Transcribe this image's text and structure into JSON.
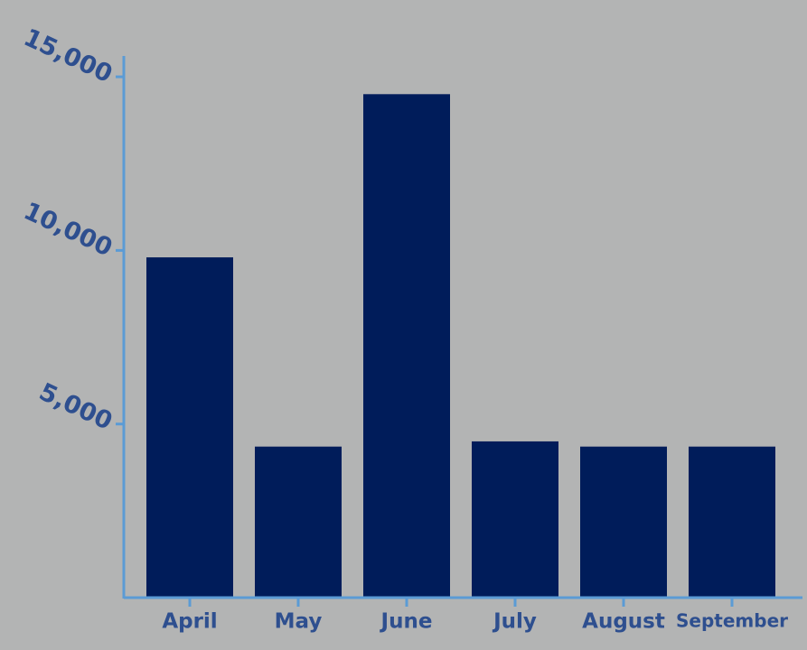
{
  "chart_data": {
    "type": "bar",
    "categories": [
      "April",
      "May",
      "June",
      "July",
      "August",
      "September"
    ],
    "values": [
      9800,
      4350,
      14500,
      4500,
      4350,
      4350
    ],
    "color": "#001c5a",
    "ylim": [
      0,
      15600
    ],
    "yticks": [
      {
        "value": 5000,
        "label": "5,000"
      },
      {
        "value": 10000,
        "label": "10,000"
      },
      {
        "value": 15000,
        "label": "15,000"
      }
    ],
    "grid": false
  }
}
